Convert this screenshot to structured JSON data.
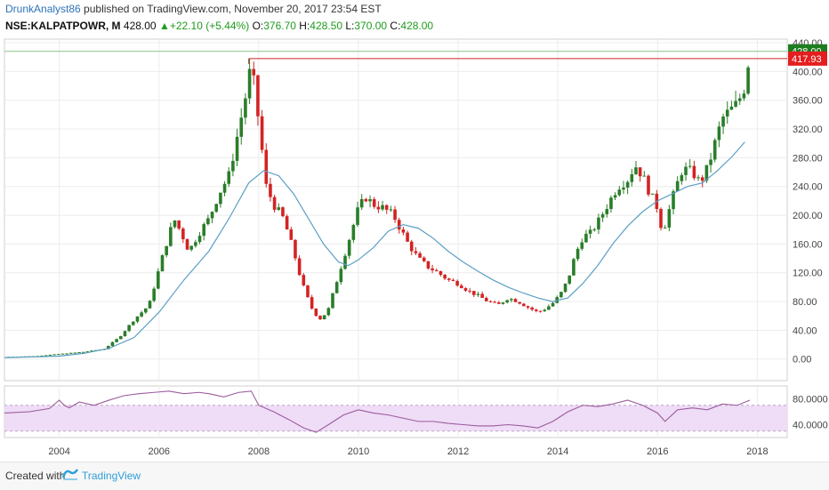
{
  "header": {
    "author": "DrunkAnalyst86",
    "published": " published on TradingView.com, November 20, 2017 23:54 EST",
    "symbol": "NSE:KALPATPOWR, M",
    "last": "428.00",
    "change": "+22.10 (+5.44%)",
    "open_label": "O:",
    "open": "376.70",
    "high_label": "H:",
    "high": "428.50",
    "low_label": "L:",
    "low": "370.00",
    "close_label": "C:",
    "close": "428.00"
  },
  "footer": {
    "created_with": "Created with",
    "brand": "TradingView"
  },
  "colors": {
    "up": "#2a7d2a",
    "down": "#d32323",
    "ma": "#5b9fc4",
    "rsi_line": "#9b5c9b",
    "rsi_band": "#efdcf7"
  },
  "chart_data": [
    {
      "type": "candlestick",
      "x_tick_labels": [
        "2004",
        "2006",
        "2008",
        "2010",
        "2012",
        "2014",
        "2016",
        "2018"
      ],
      "y_tick_labels": [
        "0.00",
        "40.00",
        "80.00",
        "120.00",
        "160.00",
        "200.00",
        "240.00",
        "280.00",
        "320.00",
        "360.00",
        "400.00",
        "440.00"
      ],
      "ylim": [
        -30,
        445
      ],
      "xlim": [
        2002.9,
        2018.6
      ],
      "price_markers": [
        {
          "label": "428.00",
          "value": 428,
          "color": "#1e7d1e"
        },
        {
          "label": "417.93",
          "value": 417.93,
          "color": "#e41e1e"
        }
      ],
      "resistance_line": {
        "value": 417.93,
        "from": 2007.8
      },
      "series": [
        {
          "kind": "price",
          "points": [
            [
              2002.9,
              3
            ],
            [
              2003.5,
              4
            ],
            [
              2004.0,
              7
            ],
            [
              2004.5,
              10
            ],
            [
              2004.9,
              14
            ],
            [
              2005.2,
              30
            ],
            [
              2005.5,
              55
            ],
            [
              2005.8,
              75
            ],
            [
              2006.1,
              150
            ],
            [
              2006.3,
              195
            ],
            [
              2006.45,
              175
            ],
            [
              2006.6,
              150
            ],
            [
              2006.8,
              175
            ],
            [
              2007.0,
              195
            ],
            [
              2007.2,
              230
            ],
            [
              2007.4,
              255
            ],
            [
              2007.6,
              320
            ],
            [
              2007.75,
              370
            ],
            [
              2007.85,
              410
            ],
            [
              2008.0,
              330
            ],
            [
              2008.15,
              240
            ],
            [
              2008.3,
              215
            ],
            [
              2008.5,
              195
            ],
            [
              2008.7,
              150
            ],
            [
              2008.85,
              110
            ],
            [
              2008.95,
              90
            ],
            [
              2009.1,
              65
            ],
            [
              2009.25,
              55
            ],
            [
              2009.4,
              70
            ],
            [
              2009.55,
              105
            ],
            [
              2009.7,
              140
            ],
            [
              2009.85,
              175
            ],
            [
              2010.0,
              210
            ],
            [
              2010.15,
              225
            ],
            [
              2010.3,
              215
            ],
            [
              2010.5,
              210
            ],
            [
              2010.7,
              200
            ],
            [
              2010.85,
              180
            ],
            [
              2011.0,
              160
            ],
            [
              2011.2,
              140
            ],
            [
              2011.4,
              128
            ],
            [
              2011.6,
              120
            ],
            [
              2011.8,
              110
            ],
            [
              2012.0,
              105
            ],
            [
              2012.2,
              95
            ],
            [
              2012.4,
              88
            ],
            [
              2012.6,
              80
            ],
            [
              2012.8,
              75
            ],
            [
              2013.0,
              85
            ],
            [
              2013.2,
              80
            ],
            [
              2013.4,
              72
            ],
            [
              2013.6,
              65
            ],
            [
              2013.75,
              70
            ],
            [
              2013.9,
              78
            ],
            [
              2014.05,
              90
            ],
            [
              2014.2,
              110
            ],
            [
              2014.35,
              145
            ],
            [
              2014.5,
              170
            ],
            [
              2014.65,
              175
            ],
            [
              2014.8,
              190
            ],
            [
              2015.0,
              215
            ],
            [
              2015.2,
              240
            ],
            [
              2015.4,
              250
            ],
            [
              2015.55,
              270
            ],
            [
              2015.7,
              255
            ],
            [
              2015.85,
              230
            ],
            [
              2016.0,
              210
            ],
            [
              2016.1,
              175
            ],
            [
              2016.2,
              200
            ],
            [
              2016.35,
              235
            ],
            [
              2016.5,
              265
            ],
            [
              2016.7,
              260
            ],
            [
              2016.85,
              245
            ],
            [
              2017.0,
              265
            ],
            [
              2017.15,
              300
            ],
            [
              2017.3,
              335
            ],
            [
              2017.45,
              345
            ],
            [
              2017.6,
              355
            ],
            [
              2017.75,
              380
            ],
            [
              2017.85,
              428
            ]
          ]
        },
        {
          "kind": "moving_average",
          "points": [
            [
              2002.9,
              2
            ],
            [
              2004.0,
              4
            ],
            [
              2004.5,
              8
            ],
            [
              2005.0,
              15
            ],
            [
              2005.5,
              30
            ],
            [
              2006.0,
              65
            ],
            [
              2006.5,
              110
            ],
            [
              2007.0,
              150
            ],
            [
              2007.4,
              195
            ],
            [
              2007.8,
              245
            ],
            [
              2008.1,
              262
            ],
            [
              2008.4,
              255
            ],
            [
              2008.7,
              230
            ],
            [
              2009.0,
              195
            ],
            [
              2009.3,
              160
            ],
            [
              2009.6,
              135
            ],
            [
              2009.8,
              130
            ],
            [
              2010.0,
              138
            ],
            [
              2010.3,
              155
            ],
            [
              2010.6,
              178
            ],
            [
              2010.9,
              187
            ],
            [
              2011.2,
              182
            ],
            [
              2011.5,
              168
            ],
            [
              2011.8,
              150
            ],
            [
              2012.1,
              135
            ],
            [
              2012.4,
              122
            ],
            [
              2012.7,
              110
            ],
            [
              2013.0,
              100
            ],
            [
              2013.3,
              92
            ],
            [
              2013.6,
              85
            ],
            [
              2013.9,
              80
            ],
            [
              2014.2,
              85
            ],
            [
              2014.5,
              105
            ],
            [
              2014.8,
              130
            ],
            [
              2015.1,
              160
            ],
            [
              2015.4,
              185
            ],
            [
              2015.7,
              205
            ],
            [
              2016.0,
              220
            ],
            [
              2016.3,
              230
            ],
            [
              2016.6,
              240
            ],
            [
              2016.9,
              245
            ],
            [
              2017.2,
              262
            ],
            [
              2017.5,
              282
            ],
            [
              2017.75,
              302
            ]
          ]
        }
      ]
    },
    {
      "type": "line",
      "indicator": "RSI",
      "y_tick_labels": [
        "80.0000",
        "40.0000"
      ],
      "ylim": [
        20,
        100
      ],
      "band": [
        30,
        70
      ],
      "series": [
        {
          "points": [
            [
              2002.9,
              58
            ],
            [
              2003.4,
              60
            ],
            [
              2003.8,
              65
            ],
            [
              2004.0,
              78
            ],
            [
              2004.1,
              70
            ],
            [
              2004.2,
              66
            ],
            [
              2004.4,
              75
            ],
            [
              2004.7,
              70
            ],
            [
              2005.0,
              78
            ],
            [
              2005.3,
              85
            ],
            [
              2005.6,
              88
            ],
            [
              2005.9,
              90
            ],
            [
              2006.2,
              92
            ],
            [
              2006.5,
              88
            ],
            [
              2006.8,
              90
            ],
            [
              2007.0,
              88
            ],
            [
              2007.3,
              83
            ],
            [
              2007.6,
              90
            ],
            [
              2007.85,
              92
            ],
            [
              2008.0,
              70
            ],
            [
              2008.3,
              60
            ],
            [
              2008.6,
              48
            ],
            [
              2008.9,
              35
            ],
            [
              2009.15,
              28
            ],
            [
              2009.4,
              40
            ],
            [
              2009.7,
              55
            ],
            [
              2010.0,
              63
            ],
            [
              2010.3,
              58
            ],
            [
              2010.6,
              55
            ],
            [
              2010.9,
              50
            ],
            [
              2011.2,
              45
            ],
            [
              2011.5,
              45
            ],
            [
              2011.8,
              42
            ],
            [
              2012.1,
              40
            ],
            [
              2012.4,
              38
            ],
            [
              2012.7,
              38
            ],
            [
              2013.0,
              40
            ],
            [
              2013.3,
              38
            ],
            [
              2013.6,
              35
            ],
            [
              2013.9,
              45
            ],
            [
              2014.2,
              60
            ],
            [
              2014.5,
              70
            ],
            [
              2014.8,
              68
            ],
            [
              2015.1,
              72
            ],
            [
              2015.4,
              78
            ],
            [
              2015.7,
              70
            ],
            [
              2016.0,
              58
            ],
            [
              2016.15,
              45
            ],
            [
              2016.4,
              63
            ],
            [
              2016.7,
              66
            ],
            [
              2017.0,
              63
            ],
            [
              2017.3,
              72
            ],
            [
              2017.6,
              70
            ],
            [
              2017.85,
              78
            ]
          ]
        }
      ]
    }
  ]
}
